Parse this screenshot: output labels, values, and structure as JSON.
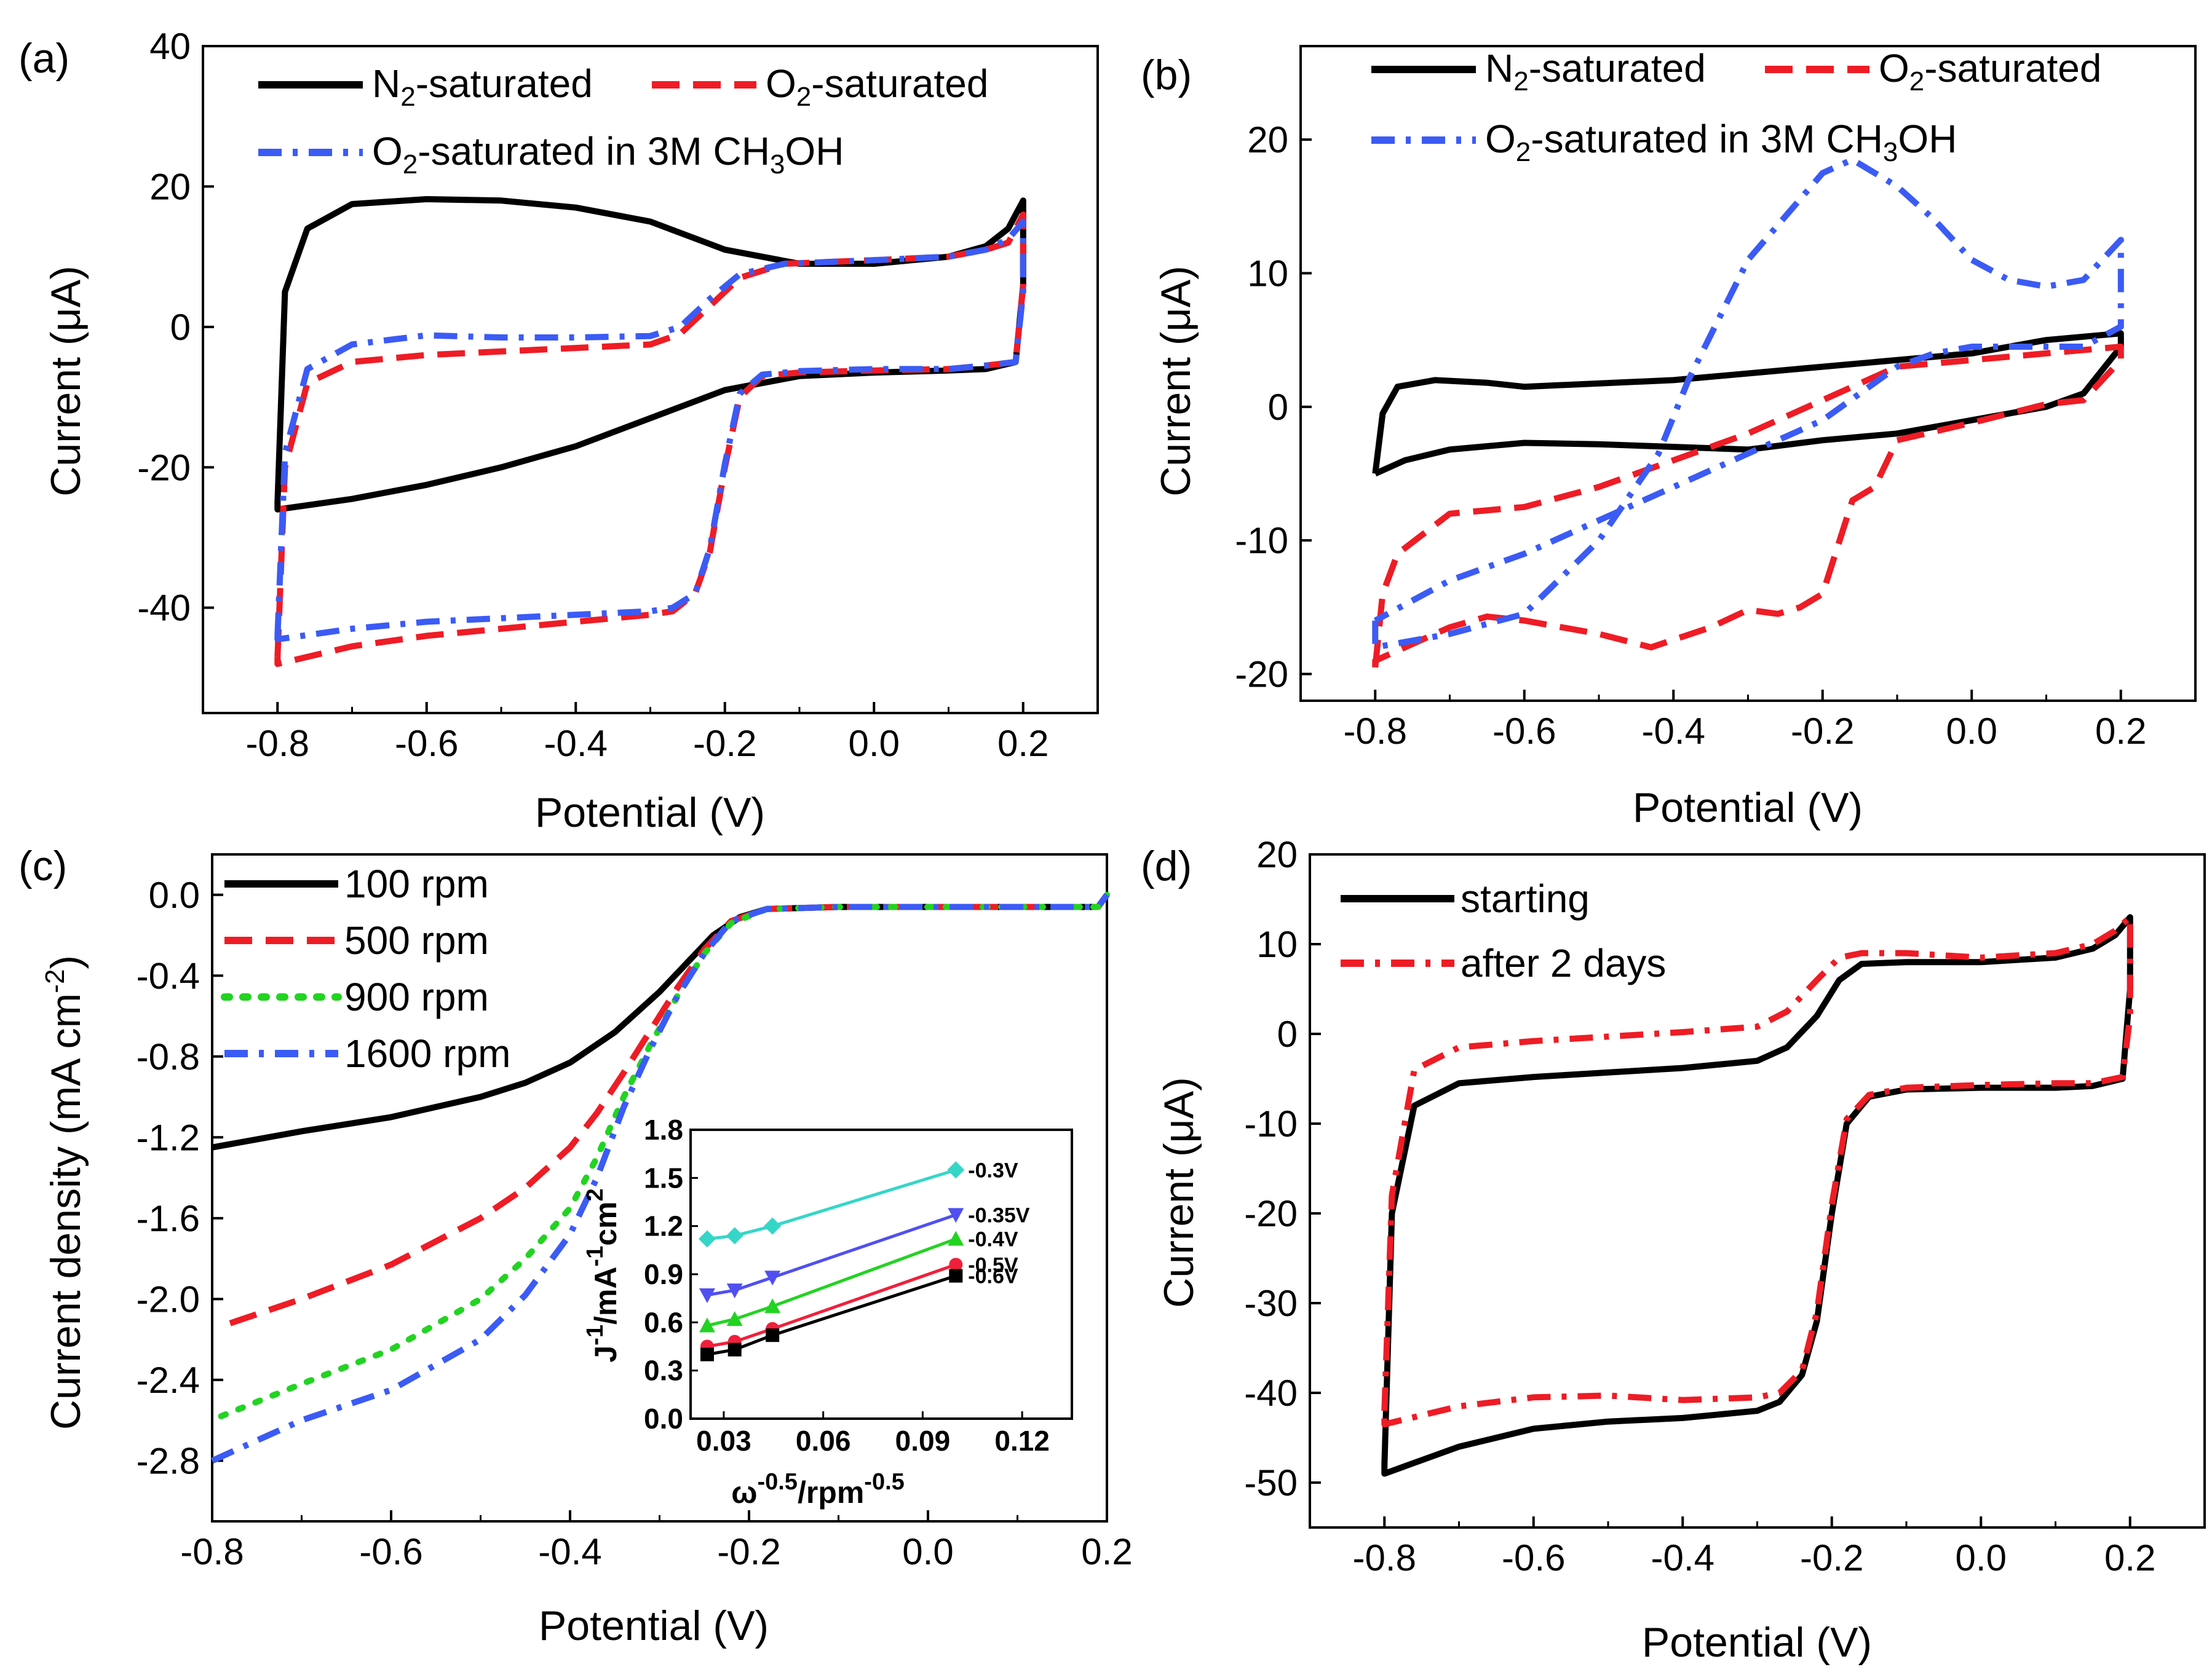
{
  "colors": {
    "black": "#000000",
    "red": "#ee1c25",
    "blue": "#3b5bf5",
    "green": "#22d322",
    "cyan": "#35d6c8",
    "inset_blue": "#5050f0",
    "inset_red": "#f0203a"
  },
  "chart_data": [
    {
      "panel": "(a)",
      "type": "line",
      "xlabel": "Potential (V)",
      "ylabel": "Current (μA)",
      "xlim": [
        -0.9,
        0.3
      ],
      "ylim": [
        -55,
        40
      ],
      "xticks": [
        "-0.8",
        "-0.6",
        "-0.4",
        "-0.2",
        "0.0",
        "0.2"
      ],
      "yticks": [
        "-40",
        "-20",
        "0",
        "20",
        "40"
      ],
      "legend": [
        "N2-saturated",
        "O2-saturated",
        "O2-saturated in 3M CH3OH"
      ],
      "series": [
        {
          "name": "N2-saturated",
          "style": "solid",
          "color": "black",
          "x": [
            -0.8,
            -0.79,
            -0.76,
            -0.7,
            -0.6,
            -0.5,
            -0.4,
            -0.3,
            -0.2,
            -0.1,
            0.0,
            0.1,
            0.15,
            0.18,
            0.2,
            0.2,
            0.19,
            0.15,
            0.1,
            0.0,
            -0.1,
            -0.2,
            -0.3,
            -0.4,
            -0.5,
            -0.6,
            -0.7,
            -0.8,
            -0.8
          ],
          "y": [
            -25,
            5,
            14,
            17.5,
            18.2,
            18,
            17,
            15,
            11,
            9,
            9,
            10,
            11.5,
            14,
            18,
            6,
            -5,
            -6,
            -6.2,
            -6.5,
            -7,
            -9,
            -13,
            -17,
            -20,
            -22.5,
            -24.5,
            -26,
            -25
          ]
        },
        {
          "name": "O2-saturated",
          "style": "dash",
          "color": "red",
          "x": [
            -0.8,
            -0.79,
            -0.76,
            -0.7,
            -0.6,
            -0.5,
            -0.4,
            -0.3,
            -0.26,
            -0.22,
            -0.18,
            -0.12,
            -0.05,
            0.0,
            0.1,
            0.15,
            0.18,
            0.2,
            0.2,
            0.19,
            0.15,
            0.1,
            0.0,
            -0.1,
            -0.15,
            -0.18,
            -0.2,
            -0.22,
            -0.24,
            -0.27,
            -0.3,
            -0.4,
            -0.5,
            -0.6,
            -0.7,
            -0.8,
            -0.8
          ],
          "y": [
            -47,
            -20,
            -8,
            -5,
            -4,
            -3.5,
            -3,
            -2.5,
            -1,
            3,
            7,
            9,
            9.3,
            9.5,
            10,
            11,
            12,
            16,
            6,
            -5,
            -5.5,
            -6,
            -6.2,
            -6.5,
            -7,
            -10,
            -20,
            -32,
            -38,
            -40.5,
            -41,
            -42,
            -43,
            -44,
            -45.5,
            -48,
            -47
          ]
        },
        {
          "name": "O2-saturated in 3M CH3OH",
          "style": "dashdot",
          "color": "blue",
          "x": [
            -0.8,
            -0.79,
            -0.76,
            -0.7,
            -0.6,
            -0.5,
            -0.4,
            -0.3,
            -0.26,
            -0.22,
            -0.18,
            -0.12,
            -0.05,
            0.0,
            0.1,
            0.15,
            0.18,
            0.2,
            0.2,
            0.19,
            0.15,
            0.1,
            0.0,
            -0.1,
            -0.15,
            -0.18,
            -0.2,
            -0.22,
            -0.24,
            -0.27,
            -0.3,
            -0.4,
            -0.5,
            -0.6,
            -0.7,
            -0.8,
            -0.8
          ],
          "y": [
            -44,
            -18,
            -6,
            -2.5,
            -1.2,
            -1.5,
            -1.5,
            -1.3,
            0,
            4,
            7.5,
            9,
            9.3,
            9.5,
            10,
            11,
            12.5,
            15,
            5,
            -5,
            -5.5,
            -6,
            -6,
            -6.3,
            -6.8,
            -9.5,
            -19.5,
            -31.5,
            -38,
            -40,
            -40.5,
            -41,
            -41.5,
            -42,
            -43,
            -44.5,
            -44
          ]
        }
      ]
    },
    {
      "panel": "(b)",
      "type": "line",
      "xlabel": "Potential (V)",
      "ylabel": "Current (μA)",
      "xlim": [
        -0.9,
        0.3
      ],
      "ylim": [
        -22,
        27
      ],
      "xticks": [
        "-0.8",
        "-0.6",
        "-0.4",
        "-0.2",
        "0.0",
        "0.2"
      ],
      "yticks": [
        "-20",
        "-10",
        "0",
        "10",
        "20"
      ],
      "legend": [
        "N2-saturated",
        "O2-saturated",
        "O2-saturated in 3M CH3OH"
      ],
      "series": [
        {
          "name": "N2-saturated",
          "style": "solid",
          "color": "black",
          "x": [
            -0.8,
            -0.79,
            -0.77,
            -0.72,
            -0.65,
            -0.6,
            -0.4,
            -0.2,
            0.0,
            0.1,
            0.2,
            0.2,
            0.15,
            0.1,
            0.0,
            -0.1,
            -0.2,
            -0.3,
            -0.4,
            -0.5,
            -0.6,
            -0.7,
            -0.76,
            -0.8
          ],
          "y": [
            -5,
            -0.5,
            1.5,
            2,
            1.8,
            1.5,
            2,
            3,
            4,
            5,
            5.5,
            4.5,
            1,
            0,
            -1,
            -2,
            -2.5,
            -3.2,
            -3,
            -2.8,
            -2.7,
            -3.2,
            -4,
            -5
          ]
        },
        {
          "name": "O2-saturated",
          "style": "dash",
          "color": "red",
          "x": [
            -0.8,
            -0.79,
            -0.77,
            -0.7,
            -0.6,
            -0.5,
            -0.4,
            -0.3,
            -0.2,
            -0.1,
            0.0,
            0.1,
            0.2,
            0.2,
            0.15,
            0.1,
            0.0,
            -0.1,
            -0.13,
            -0.16,
            -0.2,
            -0.23,
            -0.26,
            -0.3,
            -0.35,
            -0.43,
            -0.5,
            -0.6,
            -0.65,
            -0.7,
            -0.8,
            -0.8
          ],
          "y": [
            -19.5,
            -14,
            -11,
            -8,
            -7.5,
            -6,
            -4,
            -2,
            0.5,
            3,
            3.5,
            4,
            4.5,
            3.5,
            0.5,
            0.2,
            -1.2,
            -2.5,
            -6,
            -7,
            -14,
            -15,
            -15.5,
            -15.2,
            -16.5,
            -18,
            -17,
            -16,
            -15.7,
            -16.5,
            -19,
            -19.5
          ]
        },
        {
          "name": "O2-saturated in 3M CH3OH",
          "style": "dashdot",
          "color": "blue",
          "x": [
            -0.8,
            -0.8,
            -0.7,
            -0.6,
            -0.5,
            -0.42,
            -0.38,
            -0.3,
            -0.2,
            -0.16,
            -0.1,
            -0.05,
            0.0,
            0.05,
            0.1,
            0.15,
            0.2,
            0.2,
            0.15,
            0.1,
            0.0,
            -0.05,
            -0.1,
            -0.15,
            -0.2,
            -0.3,
            -0.4,
            -0.5,
            -0.6,
            -0.7,
            -0.8
          ],
          "y": [
            -16,
            -18,
            -17,
            -15.5,
            -10,
            -3.5,
            2,
            11,
            17.5,
            18.5,
            16.5,
            14,
            11,
            9.5,
            9,
            9.5,
            12.5,
            6,
            4.5,
            4.5,
            4.5,
            4,
            3,
            1,
            -1,
            -3.5,
            -6,
            -8.5,
            -11,
            -13,
            -16
          ]
        }
      ]
    },
    {
      "panel": "(c)",
      "type": "line",
      "xlabel": "Potential (V)",
      "ylabel": "Current density (mA cm-2)",
      "xlim": [
        -0.8,
        0.2
      ],
      "ylim": [
        -3.1,
        0.2
      ],
      "xticks": [
        "-0.8",
        "-0.6",
        "-0.4",
        "-0.2",
        "0.0",
        "0.2"
      ],
      "yticks": [
        "0.0",
        "-0.4",
        "-0.8",
        "-1.2",
        "-1.6",
        "-2.0",
        "-2.4",
        "-2.8"
      ],
      "legend": [
        "100 rpm",
        "500 rpm",
        "900 rpm",
        "1600 rpm"
      ],
      "series": [
        {
          "name": "100 rpm",
          "style": "solid",
          "color": "black",
          "x": [
            -0.8,
            -0.7,
            -0.6,
            -0.5,
            -0.45,
            -0.4,
            -0.35,
            -0.3,
            -0.27,
            -0.24,
            -0.21,
            -0.18,
            -0.1,
            0.0,
            0.1,
            0.19,
            0.2
          ],
          "y": [
            -1.25,
            -1.17,
            -1.1,
            -1.0,
            -0.93,
            -0.83,
            -0.68,
            -0.48,
            -0.34,
            -0.2,
            -0.11,
            -0.07,
            -0.06,
            -0.06,
            -0.06,
            -0.06,
            0.0
          ]
        },
        {
          "name": "500 rpm",
          "style": "dash",
          "color": "red",
          "x": [
            -0.78,
            -0.7,
            -0.6,
            -0.5,
            -0.45,
            -0.4,
            -0.37,
            -0.34,
            -0.31,
            -0.28,
            -0.25,
            -0.22,
            -0.18,
            -0.1,
            0.0,
            0.1,
            0.19,
            0.2
          ],
          "y": [
            -2.12,
            -2.0,
            -1.83,
            -1.6,
            -1.45,
            -1.25,
            -1.08,
            -0.88,
            -0.67,
            -0.46,
            -0.27,
            -0.13,
            -0.07,
            -0.06,
            -0.06,
            -0.06,
            -0.06,
            0.0
          ]
        },
        {
          "name": "900 rpm",
          "style": "dot",
          "color": "green",
          "x": [
            -0.79,
            -0.7,
            -0.6,
            -0.5,
            -0.45,
            -0.4,
            -0.37,
            -0.34,
            -0.31,
            -0.28,
            -0.25,
            -0.22,
            -0.18,
            -0.1,
            0.0,
            0.1,
            0.19,
            0.2
          ],
          "y": [
            -2.58,
            -2.42,
            -2.25,
            -2.0,
            -1.8,
            -1.55,
            -1.3,
            -1.0,
            -0.74,
            -0.5,
            -0.29,
            -0.14,
            -0.07,
            -0.06,
            -0.06,
            -0.06,
            -0.06,
            0.0
          ]
        },
        {
          "name": "1600 rpm",
          "style": "dashdot",
          "color": "blue",
          "x": [
            -0.8,
            -0.7,
            -0.6,
            -0.5,
            -0.45,
            -0.4,
            -0.37,
            -0.34,
            -0.31,
            -0.28,
            -0.25,
            -0.22,
            -0.18,
            -0.1,
            0.0,
            0.1,
            0.19,
            0.2
          ],
          "y": [
            -2.8,
            -2.6,
            -2.45,
            -2.2,
            -1.98,
            -1.68,
            -1.4,
            -1.05,
            -0.76,
            -0.5,
            -0.29,
            -0.13,
            -0.07,
            -0.06,
            -0.06,
            -0.06,
            -0.06,
            0.0
          ]
        }
      ],
      "inset": {
        "xlabel": "ω-0.5/rpm-0.5",
        "ylabel": "J-1/mA-1cm2",
        "xlim": [
          0.02,
          0.135
        ],
        "ylim": [
          0.0,
          1.8
        ],
        "xticks": [
          "0.03",
          "0.06",
          "0.09",
          "0.12"
        ],
        "yticks": [
          "0.0",
          "0.3",
          "0.6",
          "0.9",
          "1.2",
          "1.5",
          "1.8"
        ],
        "x": [
          0.025,
          0.0333,
          0.0447,
          0.1
        ],
        "series": [
          {
            "name": "-0.3V",
            "color": "cyan",
            "marker": "diamond",
            "values": [
              1.12,
              1.14,
              1.2,
              1.55
            ]
          },
          {
            "name": "-0.35V",
            "color": "inset_blue",
            "marker": "triangle-down",
            "values": [
              0.77,
              0.8,
              0.88,
              1.27
            ]
          },
          {
            "name": "-0.4V",
            "color": "green",
            "marker": "triangle-up",
            "values": [
              0.58,
              0.62,
              0.7,
              1.12
            ]
          },
          {
            "name": "-0.5V",
            "color": "inset_red",
            "marker": "circle",
            "values": [
              0.45,
              0.48,
              0.56,
              0.96
            ]
          },
          {
            "name": "-0.6V",
            "color": "black",
            "marker": "square",
            "values": [
              0.4,
              0.43,
              0.52,
              0.89
            ]
          }
        ]
      }
    },
    {
      "panel": "(d)",
      "type": "line",
      "xlabel": "Potential (V)",
      "ylabel": "Current (μA)",
      "xlim": [
        -0.9,
        0.3
      ],
      "ylim": [
        -55,
        20
      ],
      "xticks": [
        "-0.8",
        "-0.6",
        "-0.4",
        "-0.2",
        "0.0",
        "0.2"
      ],
      "yticks": [
        "-50",
        "-40",
        "-30",
        "-20",
        "-10",
        "0",
        "10",
        "20"
      ],
      "legend": [
        "starting",
        "after 2 days"
      ],
      "series": [
        {
          "name": "starting",
          "style": "solid",
          "color": "black",
          "x": [
            -0.8,
            -0.79,
            -0.76,
            -0.7,
            -0.6,
            -0.5,
            -0.4,
            -0.3,
            -0.26,
            -0.22,
            -0.19,
            -0.16,
            -0.1,
            0.0,
            0.1,
            0.15,
            0.18,
            0.2,
            0.2,
            0.19,
            0.15,
            0.1,
            0.0,
            -0.1,
            -0.15,
            -0.18,
            -0.2,
            -0.22,
            -0.24,
            -0.27,
            -0.3,
            -0.4,
            -0.5,
            -0.6,
            -0.7,
            -0.8,
            -0.8
          ],
          "y": [
            -48,
            -20,
            -8,
            -5.5,
            -4.8,
            -4.3,
            -3.8,
            -3,
            -1.5,
            2,
            6,
            7.8,
            8,
            8,
            8.5,
            9.5,
            11,
            13,
            5,
            -5,
            -5.8,
            -6,
            -6,
            -6.2,
            -7,
            -10,
            -20,
            -32,
            -38,
            -41,
            -42,
            -42.8,
            -43.2,
            -44,
            -46,
            -49,
            -48
          ]
        },
        {
          "name": "after 2 days",
          "style": "dashdot",
          "color": "red",
          "x": [
            -0.8,
            -0.79,
            -0.76,
            -0.7,
            -0.6,
            -0.5,
            -0.4,
            -0.3,
            -0.26,
            -0.22,
            -0.19,
            -0.16,
            -0.1,
            0.0,
            0.1,
            0.15,
            0.18,
            0.2,
            0.2,
            0.19,
            0.15,
            0.1,
            0.0,
            -0.1,
            -0.15,
            -0.18,
            -0.2,
            -0.22,
            -0.24,
            -0.27,
            -0.3,
            -0.4,
            -0.5,
            -0.6,
            -0.7,
            -0.8,
            -0.8
          ],
          "y": [
            -42,
            -18,
            -4,
            -1.5,
            -0.8,
            -0.3,
            0.2,
            0.8,
            2.5,
            6,
            8.5,
            9,
            9,
            8.5,
            9,
            10,
            11.5,
            13,
            2,
            -4.8,
            -5.5,
            -5.5,
            -5.7,
            -6,
            -6.8,
            -9.5,
            -19,
            -31,
            -37.5,
            -40,
            -40.5,
            -40.8,
            -40.3,
            -40.5,
            -41.5,
            -43.5,
            -42
          ]
        }
      ]
    }
  ],
  "panels": {
    "a": {
      "label": "(a)",
      "xlabel": "Potential (V)",
      "ylabel": "Current (μA)",
      "legend": {
        "n2_pre": "N",
        "n2_sub": "2",
        "n2_post": "-saturated",
        "o2_pre": "O",
        "o2_sub": "2",
        "o2_post": "-saturated",
        "ch_pre": "O",
        "ch_sub": "2",
        "ch_mid": "-saturated in 3M CH",
        "ch_sub2": "3",
        "ch_post": "OH"
      }
    },
    "b": {
      "label": "(b)",
      "xlabel": "Potential (V)",
      "ylabel": "Current (μA)",
      "legend": {
        "n2_pre": "N",
        "n2_sub": "2",
        "n2_post": "-saturated",
        "o2_pre": "O",
        "o2_sub": "2",
        "o2_post": "-saturated",
        "ch_pre": "O",
        "ch_sub": "2",
        "ch_mid": "-saturated in 3M CH",
        "ch_sub2": "3",
        "ch_post": "OH"
      }
    },
    "c": {
      "label": "(c)",
      "xlabel": "Potential (V)",
      "ylabel_pre": "Current density (mA cm",
      "ylabel_sup": "-2",
      "ylabel_post": ")",
      "legend": [
        "100 rpm",
        "500 rpm",
        "900 rpm",
        "1600 rpm"
      ],
      "inset": {
        "ylabel_a": "J",
        "ylabel_b": "-1",
        "ylabel_c": "/mA",
        "ylabel_d": "-1",
        "ylabel_e": "cm",
        "ylabel_f": "2",
        "xlabel_a": "ω",
        "xlabel_b": "-0.5",
        "xlabel_c": "/rpm",
        "xlabel_d": "-0.5"
      }
    },
    "d": {
      "label": "(d)",
      "xlabel": "Potential (V)",
      "ylabel": "Current (μA)",
      "legend": [
        "starting",
        "after 2 days"
      ]
    }
  }
}
